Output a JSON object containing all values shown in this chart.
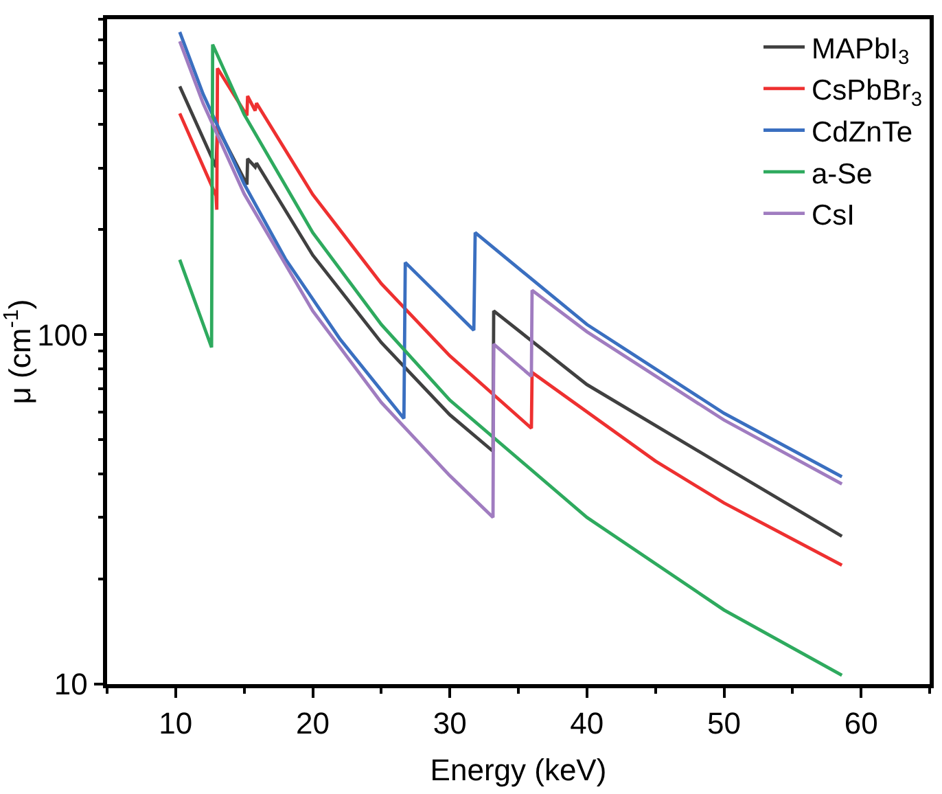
{
  "chart_data": {
    "type": "line",
    "xlabel": "Energy (keV)",
    "ylabel": "μ (cm$^{-1}$)",
    "log": "y",
    "legend": "top right",
    "line_style": "solid",
    "marker": "none",
    "xlim": [
      5,
      65
    ],
    "xticks": [
      {
        "value": 5,
        "label": null
      },
      10,
      {
        "value": 15,
        "label": null
      },
      20,
      {
        "value": 25,
        "label": null
      },
      30,
      {
        "value": 35,
        "label": null
      },
      40,
      {
        "value": 45,
        "label": null
      },
      50,
      {
        "value": 55,
        "label": null
      },
      60,
      {
        "value": 65,
        "label": null
      }
    ],
    "ylim": [
      10,
      800
    ],
    "yticks": [
      10,
      {
        "value": 20,
        "label": null
      },
      {
        "value": 30,
        "label": null
      },
      {
        "value": 40,
        "label": null
      },
      {
        "value": 50,
        "label": null
      },
      {
        "value": 60,
        "label": null
      },
      {
        "value": 70,
        "label": null
      },
      {
        "value": 80,
        "label": null
      },
      {
        "value": 90,
        "label": null
      },
      100,
      {
        "value": 200,
        "label": null
      },
      {
        "value": 300,
        "label": null
      },
      {
        "value": 400,
        "label": null
      },
      {
        "value": 500,
        "label": null
      },
      {
        "value": 600,
        "label": null
      },
      {
        "value": 700,
        "label": null
      },
      {
        "value": 800,
        "label": null
      }
    ],
    "series": [
      {
        "name": "MAPbI$_{3}$",
        "color": "#404040",
        "x": [
          10.3,
          12.95,
          13.05,
          15.2,
          15.25,
          15.8,
          15.9,
          20,
          25,
          30,
          33.15,
          33.2,
          40,
          50,
          58.6
        ],
        "values": [
          514,
          302,
          392,
          269,
          319,
          302,
          310,
          169,
          95,
          59,
          46.4,
          117,
          72,
          42,
          26.5
        ]
      },
      {
        "name": "CsPbBr$_{3}$",
        "color": "#ee3030",
        "x": [
          10.3,
          12.95,
          13.0,
          13.05,
          15.2,
          15.25,
          15.8,
          15.9,
          20,
          25,
          30,
          35.95,
          36.0,
          45,
          50,
          58.6
        ],
        "values": [
          430,
          250,
          228,
          579,
          424,
          482,
          438,
          460,
          252,
          140,
          87,
          54,
          78,
          43.5,
          33,
          21.9
        ]
      },
      {
        "name": "CdZnTe",
        "color": "#3a6fc0",
        "x": [
          10.3,
          12,
          15,
          18,
          22,
          26.65,
          26.75,
          31.75,
          31.85,
          40,
          50,
          58.6
        ],
        "values": [
          735,
          489,
          270,
          165,
          97,
          57.6,
          161,
          103,
          196,
          107,
          59.6,
          39.2
        ]
      },
      {
        "name": "a-Se",
        "color": "#2eaa5e",
        "x": [
          10.3,
          12.62,
          12.7,
          15,
          20,
          25,
          30,
          40,
          50,
          58.6
        ],
        "values": [
          164,
          92,
          677,
          427,
          196,
          107,
          65,
          30,
          16.3,
          10.6
        ]
      },
      {
        "name": "CsI",
        "color": "#a07cc0",
        "x": [
          10.3,
          12,
          15,
          20,
          25,
          30,
          33.15,
          33.2,
          35.95,
          36.0,
          40,
          50,
          58.6
        ],
        "values": [
          692,
          460,
          253,
          117,
          64,
          39.5,
          30,
          94,
          76,
          134,
          102,
          57,
          37.4
        ]
      }
    ]
  }
}
